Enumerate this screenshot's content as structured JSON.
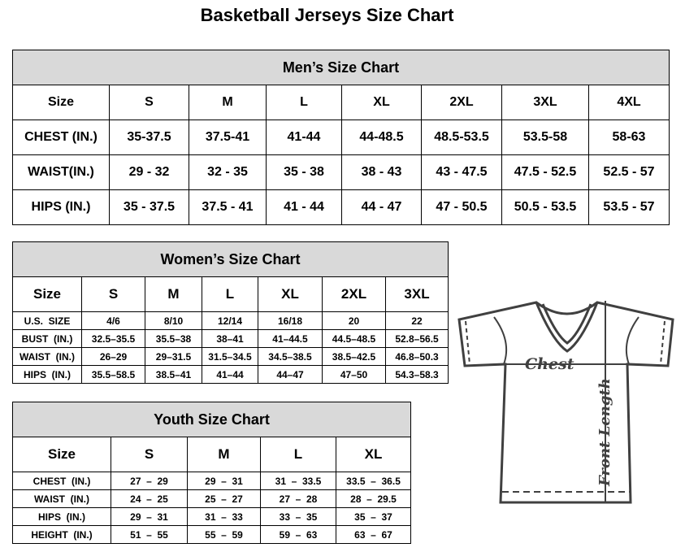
{
  "title": "Basketball Jerseys Size Chart",
  "tables": {
    "men": {
      "title": "Men’s Size Chart",
      "widths": [
        119,
        98,
        95,
        93,
        98,
        99,
        107,
        99
      ],
      "rows": [
        [
          "Size",
          "S",
          "M",
          "L",
          "XL",
          "2XL",
          "3XL",
          "4XL"
        ],
        [
          "CHEST (IN.)",
          "35-37.5",
          "37.5-41",
          "41-44",
          "44-48.5",
          "48.5-53.5",
          "53.5-58",
          "58-63"
        ],
        [
          "WAIST(IN.)",
          "29 - 32",
          "32 - 35",
          "35 - 38",
          "38 - 43",
          "43 - 47.5",
          "47.5 - 52.5",
          "52.5 - 57"
        ],
        [
          "HIPS (IN.)",
          "35 - 37.5",
          "37.5 - 41",
          "41 - 44",
          "44 - 47",
          "47 - 50.5",
          "50.5 - 53.5",
          "53.5 - 57"
        ]
      ]
    },
    "women": {
      "title": "Women’s Size Chart",
      "widths": [
        85,
        78,
        70,
        69,
        79,
        78,
        77
      ],
      "rows": [
        [
          "Size",
          "S",
          "M",
          "L",
          "XL",
          "2XL",
          "3XL"
        ],
        [
          "U.S.  SIZE",
          "4/6",
          "8/10",
          "12/14",
          "16/18",
          "20",
          "22"
        ],
        [
          "BUST  (IN.)",
          "32.5–35.5",
          "35.5–38",
          "38–41",
          "41–44.5",
          "44.5–48.5",
          "52.8–56.5"
        ],
        [
          "WAIST  (IN.)",
          "26–29",
          "29–31.5",
          "31.5–34.5",
          "34.5–38.5",
          "38.5–42.5",
          "46.8–50.3"
        ],
        [
          "HIPS  (IN.)",
          "35.5–58.5",
          "38.5–41",
          "41–44",
          "44–47",
          "47–50",
          "54.3–58.3"
        ]
      ]
    },
    "youth": {
      "title": "Youth Size Chart",
      "widths": [
        121,
        94,
        90,
        93,
        92
      ],
      "rows": [
        [
          "Size",
          "S",
          "M",
          "L",
          "XL"
        ],
        [
          "CHEST  (IN.)",
          "27  –  29",
          "29  –  31",
          "31  –  33.5",
          "33.5  –  36.5"
        ],
        [
          "WAIST  (IN.)",
          "24  –  25",
          "25  –  27",
          "27  –  28",
          "28  –  29.5"
        ],
        [
          "HIPS  (IN.)",
          "29  –  31",
          "31  –  33",
          "33  –  35",
          "35  –  37"
        ],
        [
          "HEIGHT  (IN.)",
          "51  –  55",
          "55  –  59",
          "59  –  63",
          "63  –  67"
        ]
      ]
    }
  },
  "diagram": {
    "chest_label": "Chest",
    "length_label": "Front Length",
    "line_color": "#404040"
  }
}
